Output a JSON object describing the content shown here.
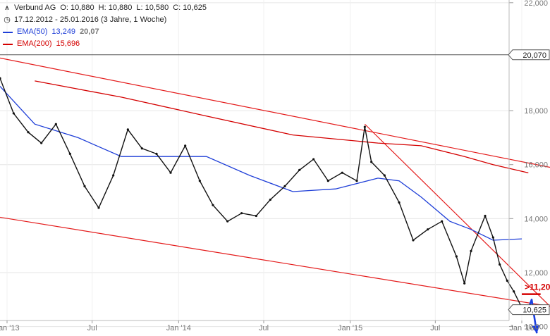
{
  "header": {
    "name": "Verbund AG",
    "open": "O: 10,880",
    "high": "H: 10,880",
    "low": "L: 10,580",
    "close": "C: 10,625",
    "range": "17.12.2012 - 25.01.2016 (3 Jahre, 1 Woche)"
  },
  "legend": {
    "ema50_label": "EMA(50)",
    "ema50_value": "13,249",
    "ema50_extra": "20,07",
    "ema200_label": "EMA(200)",
    "ema200_value": "15,696"
  },
  "colors": {
    "price": "#111111",
    "ema50": "#1f3fd8",
    "ema200": "#d40000",
    "trend": "#e41a1a",
    "arrow": "#1a3fe0"
  },
  "chart_data": {
    "type": "line",
    "title": "",
    "xlabel": "",
    "ylabel": "",
    "ylim": [
      9.65,
      22.1
    ],
    "xlim": [
      "2012-12-17",
      "2016-03-01"
    ],
    "yticks": [
      {
        "value": 10,
        "label": "10,000"
      },
      {
        "value": 12,
        "label": "12,000"
      },
      {
        "value": 14,
        "label": "14,000"
      },
      {
        "value": 16,
        "label": "16,000"
      },
      {
        "value": 18,
        "label": "18,000"
      },
      {
        "value": 22,
        "label": "22,000"
      }
    ],
    "xticks": [
      {
        "date": "2013-01-01",
        "label": "Jan '13"
      },
      {
        "date": "2013-07-01",
        "label": "Jul"
      },
      {
        "date": "2014-01-01",
        "label": "Jan '14"
      },
      {
        "date": "2014-07-01",
        "label": "Jul"
      },
      {
        "date": "2015-01-01",
        "label": "Jan '15"
      },
      {
        "date": "2015-07-01",
        "label": "Jul"
      },
      {
        "date": "2016-01-01",
        "label": "Jan '16"
      }
    ],
    "price_labels": [
      {
        "value": 20.07,
        "label": "20,070"
      },
      {
        "value": 10.625,
        "label": "10,625"
      }
    ],
    "horizontal_line": {
      "value": 20.07
    },
    "price_series": {
      "name": "",
      "x": [
        "2012-12-17",
        "2013-01-15",
        "2013-02-15",
        "2013-03-15",
        "2013-04-15",
        "2013-05-15",
        "2013-06-15",
        "2013-07-15",
        "2013-08-15",
        "2013-09-15",
        "2013-10-15",
        "2013-11-15",
        "2013-12-15",
        "2014-01-15",
        "2014-02-15",
        "2014-03-15",
        "2014-04-15",
        "2014-05-15",
        "2014-06-15",
        "2014-07-15",
        "2014-08-15",
        "2014-09-15",
        "2014-10-15",
        "2014-11-15",
        "2014-12-15",
        "2015-01-15",
        "2015-02-01",
        "2015-02-15",
        "2015-03-15",
        "2015-04-15",
        "2015-05-15",
        "2015-06-15",
        "2015-07-15",
        "2015-08-15",
        "2015-09-01",
        "2015-09-15",
        "2015-10-15",
        "2015-11-01",
        "2015-11-15",
        "2015-12-01",
        "2015-12-15",
        "2016-01-01",
        "2016-01-10",
        "2016-01-25"
      ],
      "values": [
        19.2,
        17.9,
        17.2,
        16.8,
        17.5,
        16.4,
        15.2,
        14.4,
        15.6,
        17.3,
        16.6,
        16.4,
        15.7,
        16.7,
        15.4,
        14.5,
        13.9,
        14.2,
        14.1,
        14.7,
        15.2,
        15.8,
        16.2,
        15.4,
        15.7,
        15.4,
        17.4,
        16.1,
        15.6,
        14.6,
        13.2,
        13.6,
        13.9,
        12.6,
        11.6,
        12.8,
        14.1,
        13.3,
        12.3,
        11.7,
        11.3,
        10.7,
        10.6,
        10.625
      ]
    },
    "ema50": {
      "name": "EMA(50)",
      "x": [
        "2012-12-17",
        "2013-03-01",
        "2013-06-01",
        "2013-09-01",
        "2013-12-01",
        "2014-03-01",
        "2014-06-01",
        "2014-09-01",
        "2014-12-01",
        "2015-03-01",
        "2015-04-15",
        "2015-06-01",
        "2015-08-01",
        "2015-09-15",
        "2015-11-01",
        "2016-01-01"
      ],
      "values": [
        18.9,
        17.5,
        17.0,
        16.3,
        16.3,
        16.3,
        15.6,
        15.0,
        15.1,
        15.5,
        15.4,
        14.8,
        13.9,
        13.6,
        13.2,
        13.249
      ]
    },
    "ema200": {
      "name": "EMA(200)",
      "x": [
        "2013-03-01",
        "2013-09-01",
        "2014-03-01",
        "2014-09-01",
        "2015-03-01",
        "2015-06-01",
        "2015-09-01",
        "2015-11-01",
        "2016-01-15"
      ],
      "values": [
        19.1,
        18.5,
        17.8,
        17.1,
        16.8,
        16.7,
        16.3,
        16.0,
        15.696
      ]
    },
    "trendlines": [
      {
        "from": {
          "x": "2012-12-17",
          "y": 19.95
        },
        "to": {
          "x": "2016-03-01",
          "y": 15.9
        }
      },
      {
        "from": {
          "x": "2015-02-01",
          "y": 17.5
        },
        "to": {
          "x": "2016-03-01",
          "y": 10.75
        }
      },
      {
        "from": {
          "x": "2012-12-17",
          "y": 14.05
        },
        "to": {
          "x": "2016-03-01",
          "y": 10.75
        }
      }
    ],
    "target": {
      "label": ">11,20",
      "value": 11.2,
      "x_start": "2016-01-01",
      "x_end": "2016-02-10",
      "arrow_points": [
        {
          "x": "2016-01-15",
          "y": 10.65
        },
        {
          "x": "2016-01-22",
          "y": 11.0
        },
        {
          "x": "2016-02-02",
          "y": 9.75
        }
      ]
    }
  }
}
